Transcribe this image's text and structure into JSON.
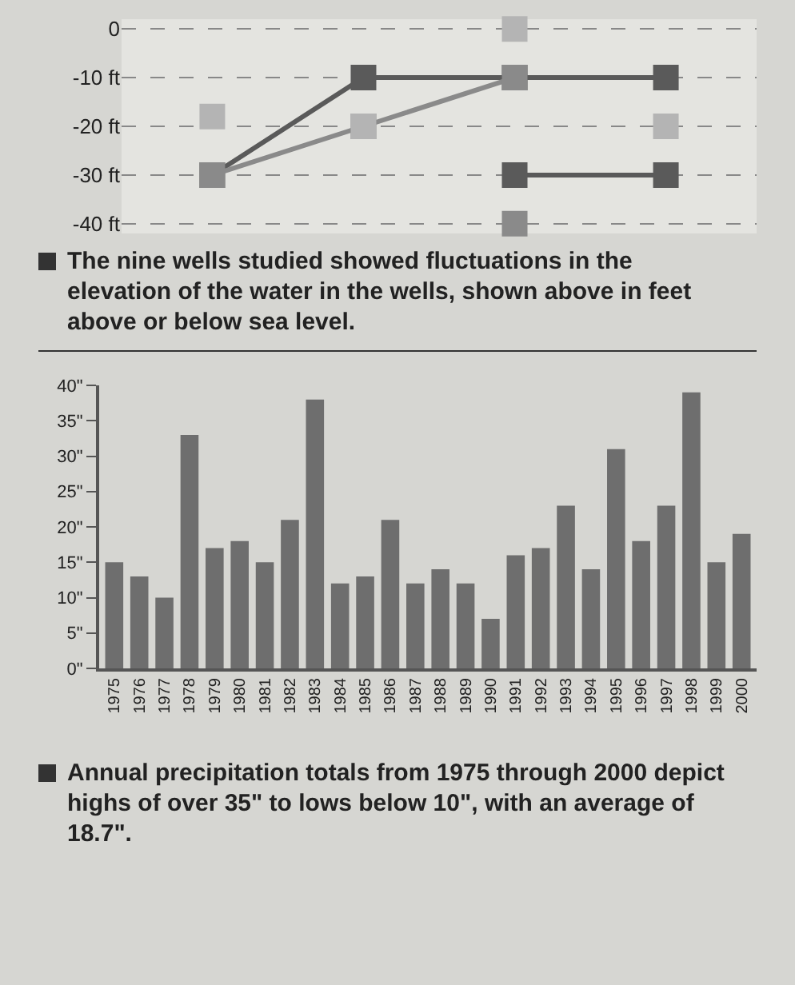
{
  "chart_data": [
    {
      "type": "line",
      "categories": [
        null,
        null,
        null,
        null
      ],
      "series": [
        {
          "color": "#5a5a5a",
          "values": [
            -30,
            -10,
            -10,
            -10
          ]
        },
        {
          "color": "#8a8a8a",
          "values": [
            -30,
            -20,
            -10,
            null
          ]
        },
        {
          "color": "#5a5a5a",
          "values": [
            null,
            null,
            -30,
            -30
          ]
        },
        {
          "type": "scatter",
          "color": "#b4b4b4",
          "values": [
            -18,
            -20,
            0,
            -20
          ]
        },
        {
          "type": "scatter",
          "color": "#8a8a8a",
          "values": [
            null,
            null,
            -40,
            null
          ]
        }
      ],
      "ylim": [
        -42,
        2
      ],
      "yticks": [
        0,
        {
          "value": -10,
          "label": "-10 ft"
        },
        {
          "value": -20,
          "label": "-20 ft"
        },
        {
          "value": -30,
          "label": "-30 ft"
        },
        {
          "value": -40,
          "label": "-40 ft"
        }
      ],
      "grid": "y",
      "marker": "square",
      "line_style": "solid",
      "tick_labels": "y",
      "annotations": [
        "The nine wells studied showed fluctuations in the elevation of the water in the wells, shown above in feet above or below sea level."
      ]
    },
    {
      "type": "bar",
      "categories": [
        "1975",
        "1976",
        "1977",
        "1978",
        "1979",
        "1980",
        "1981",
        "1982",
        "1983",
        "1984",
        "1985",
        "1986",
        "1987",
        "1988",
        "1989",
        "1990",
        "1991",
        "1992",
        "1993",
        "1994",
        "1995",
        "1996",
        "1997",
        "1998",
        "1999",
        "2000"
      ],
      "values": [
        15,
        13,
        10,
        33,
        17,
        18,
        15,
        21,
        38,
        12,
        13,
        21,
        12,
        14,
        12,
        7,
        16,
        17,
        23,
        14,
        31,
        18,
        23,
        39,
        15,
        19
      ],
      "color": "#6e6e6e",
      "ylim": [
        0,
        40
      ],
      "yticks": [
        {
          "value": 0,
          "label": "0\""
        },
        {
          "value": 5,
          "label": "5\""
        },
        {
          "value": 10,
          "label": "10\""
        },
        {
          "value": 15,
          "label": "15\""
        },
        {
          "value": 20,
          "label": "20\""
        },
        {
          "value": 25,
          "label": "25\""
        },
        {
          "value": 30,
          "label": "30\""
        },
        {
          "value": 35,
          "label": "35\""
        },
        {
          "value": 40,
          "label": "40\""
        }
      ],
      "grid": false,
      "annotations": [
        "Annual precipitation totals from 1975 through 2000 depict highs of over 35\" to lows below 10\", with an average of 18.7\"."
      ]
    }
  ]
}
